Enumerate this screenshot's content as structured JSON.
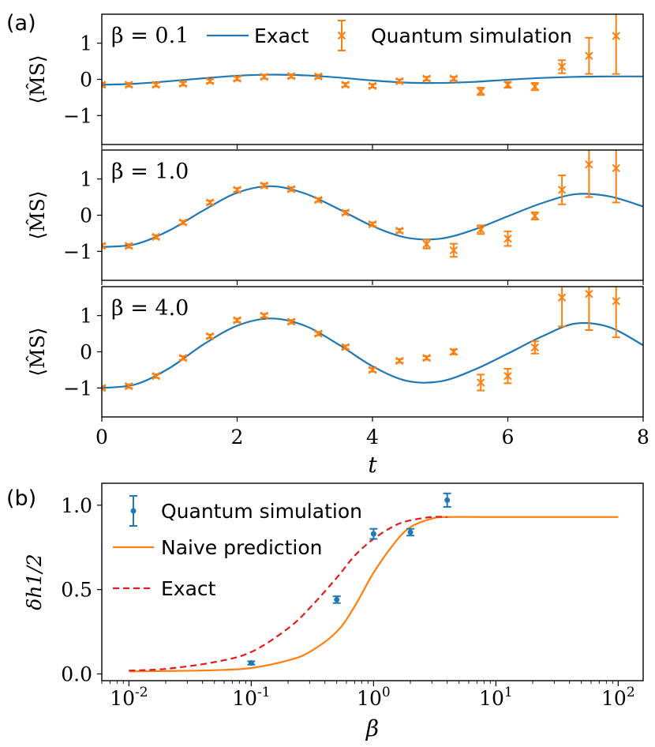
{
  "panel_a": {
    "label": "(a)",
    "legend": {
      "exact": "Exact",
      "quantum": "Quantum simulation"
    },
    "ylabel": "⟨M̂S⟩",
    "xlabel": "t",
    "xticks": [
      "0",
      "2",
      "4",
      "6",
      "8"
    ],
    "yticks": [
      "−1",
      "0",
      "1"
    ]
  },
  "panel_b": {
    "label": "(b)",
    "legend": {
      "quantum": "Quantum simulation",
      "naive": "Naive prediction",
      "exact": "Exact"
    },
    "ylabel": "δh1/2",
    "xlabel": "β",
    "yticks": [
      "0.0",
      "0.5",
      "1.0"
    ],
    "xticks": [
      "-2",
      "-1",
      "0",
      "1",
      "2"
    ]
  },
  "colors": {
    "blue": "#1f77b4",
    "orange": "#ff7f0e",
    "red": "#e31a1c"
  },
  "chart_data": [
    {
      "type": "line",
      "panel": "a-top",
      "annotation": "β = 0.1",
      "xlim": [
        0,
        8
      ],
      "ylim": [
        -1.8,
        1.8
      ],
      "exact": {
        "x": [
          0,
          0.5,
          1,
          1.5,
          2,
          2.5,
          3,
          3.5,
          4,
          4.5,
          5,
          5.5,
          6,
          6.5,
          7,
          7.5,
          8
        ],
        "y": [
          -0.15,
          -0.12,
          -0.05,
          0.03,
          0.1,
          0.13,
          0.11,
          0.05,
          -0.03,
          -0.09,
          -0.1,
          -0.07,
          -0.01,
          0.04,
          0.07,
          0.08,
          0.08
        ]
      },
      "quantum": {
        "x": [
          0,
          0.4,
          0.8,
          1.2,
          1.6,
          2.0,
          2.4,
          2.8,
          3.2,
          3.6,
          4.0,
          4.4,
          4.8,
          5.2,
          5.6,
          6.0,
          6.4,
          6.8,
          7.2,
          7.6
        ],
        "y": [
          -0.15,
          -0.15,
          -0.15,
          -0.12,
          -0.05,
          0.02,
          0.07,
          0.09,
          0.08,
          -0.15,
          -0.18,
          -0.05,
          0.02,
          0.02,
          -0.33,
          -0.15,
          -0.2,
          0.35,
          0.65,
          1.2
        ],
        "err": [
          0.05,
          0.05,
          0.05,
          0.05,
          0.05,
          0.05,
          0.05,
          0.05,
          0.05,
          0.05,
          0.05,
          0.05,
          0.05,
          0.05,
          0.1,
          0.08,
          0.1,
          0.18,
          0.5,
          1.05
        ]
      }
    },
    {
      "type": "line",
      "panel": "a-middle",
      "annotation": "β = 1.0",
      "xlim": [
        0,
        8
      ],
      "ylim": [
        -1.8,
        1.8
      ],
      "exact": {
        "x": [
          0,
          0.5,
          1,
          1.5,
          2,
          2.5,
          3,
          3.5,
          4,
          4.5,
          5,
          5.5,
          6,
          6.5,
          7,
          7.5,
          8
        ],
        "y": [
          -0.88,
          -0.8,
          -0.42,
          0.13,
          0.62,
          0.8,
          0.6,
          0.17,
          -0.3,
          -0.62,
          -0.65,
          -0.4,
          -0.03,
          0.33,
          0.58,
          0.52,
          0.24
        ]
      },
      "quantum": {
        "x": [
          0,
          0.4,
          0.8,
          1.2,
          1.6,
          2.0,
          2.4,
          2.8,
          3.2,
          3.6,
          4.0,
          4.4,
          4.8,
          5.2,
          5.6,
          6.0,
          6.4,
          6.8,
          7.2,
          7.6
        ],
        "y": [
          -0.85,
          -0.85,
          -0.6,
          -0.2,
          0.35,
          0.7,
          0.82,
          0.72,
          0.42,
          0.07,
          -0.25,
          -0.43,
          -0.8,
          -0.97,
          -0.4,
          -0.65,
          -0.02,
          0.7,
          1.4,
          1.3
        ],
        "err": [
          0.05,
          0.05,
          0.05,
          0.05,
          0.05,
          0.05,
          0.05,
          0.05,
          0.05,
          0.05,
          0.05,
          0.05,
          0.12,
          0.18,
          0.12,
          0.2,
          0.1,
          0.4,
          0.9,
          0.95
        ]
      }
    },
    {
      "type": "line",
      "panel": "a-bottom",
      "annotation": "β = 4.0",
      "xlim": [
        0,
        8
      ],
      "ylim": [
        -1.8,
        1.8
      ],
      "exact": {
        "x": [
          0,
          0.5,
          1,
          1.5,
          2,
          2.5,
          3,
          3.5,
          4,
          4.5,
          5,
          5.5,
          6,
          6.5,
          7,
          7.5,
          8
        ],
        "y": [
          -1.0,
          -0.9,
          -0.45,
          0.2,
          0.72,
          0.92,
          0.72,
          0.2,
          -0.4,
          -0.8,
          -0.82,
          -0.5,
          -0.05,
          0.42,
          0.78,
          0.68,
          0.18
        ]
      },
      "quantum": {
        "x": [
          0,
          0.4,
          0.8,
          1.2,
          1.6,
          2.0,
          2.4,
          2.8,
          3.2,
          3.6,
          4.0,
          4.4,
          4.8,
          5.2,
          5.6,
          6.0,
          6.4,
          6.8,
          7.2,
          7.6
        ],
        "y": [
          -1.0,
          -0.95,
          -0.67,
          -0.17,
          0.43,
          0.87,
          1.0,
          0.83,
          0.5,
          0.13,
          -0.5,
          -0.25,
          -0.17,
          0.0,
          -0.85,
          -0.67,
          0.12,
          1.5,
          1.6,
          1.4
        ],
        "err": [
          0.05,
          0.05,
          0.05,
          0.05,
          0.05,
          0.05,
          0.05,
          0.05,
          0.05,
          0.05,
          0.05,
          0.05,
          0.05,
          0.07,
          0.22,
          0.2,
          0.17,
          0.8,
          1.0,
          1.0
        ]
      }
    },
    {
      "type": "line",
      "panel": "b",
      "xscale": "log",
      "xlim": [
        0.006,
        160
      ],
      "ylim": [
        -0.04,
        1.13
      ],
      "naive": {
        "x": [
          0.01,
          0.02,
          0.05,
          0.1,
          0.2,
          0.3,
          0.5,
          0.7,
          1.0,
          1.5,
          2.0,
          3.0,
          4.0,
          10,
          100
        ],
        "y": [
          0.015,
          0.017,
          0.022,
          0.035,
          0.08,
          0.13,
          0.25,
          0.4,
          0.6,
          0.78,
          0.87,
          0.92,
          0.93,
          0.93,
          0.93
        ]
      },
      "exact": {
        "x": [
          0.01,
          0.02,
          0.05,
          0.1,
          0.2,
          0.3,
          0.5,
          0.7,
          1.0,
          1.5,
          2.0,
          3.0,
          4.0
        ],
        "y": [
          0.02,
          0.03,
          0.07,
          0.13,
          0.27,
          0.39,
          0.57,
          0.7,
          0.8,
          0.88,
          0.91,
          0.93,
          0.93
        ]
      },
      "quantum": {
        "x": [
          0.1,
          0.5,
          1.0,
          2.0,
          4.0
        ],
        "y": [
          0.065,
          0.44,
          0.83,
          0.84,
          1.03
        ],
        "err": [
          0.01,
          0.02,
          0.03,
          0.02,
          0.04
        ]
      }
    }
  ]
}
